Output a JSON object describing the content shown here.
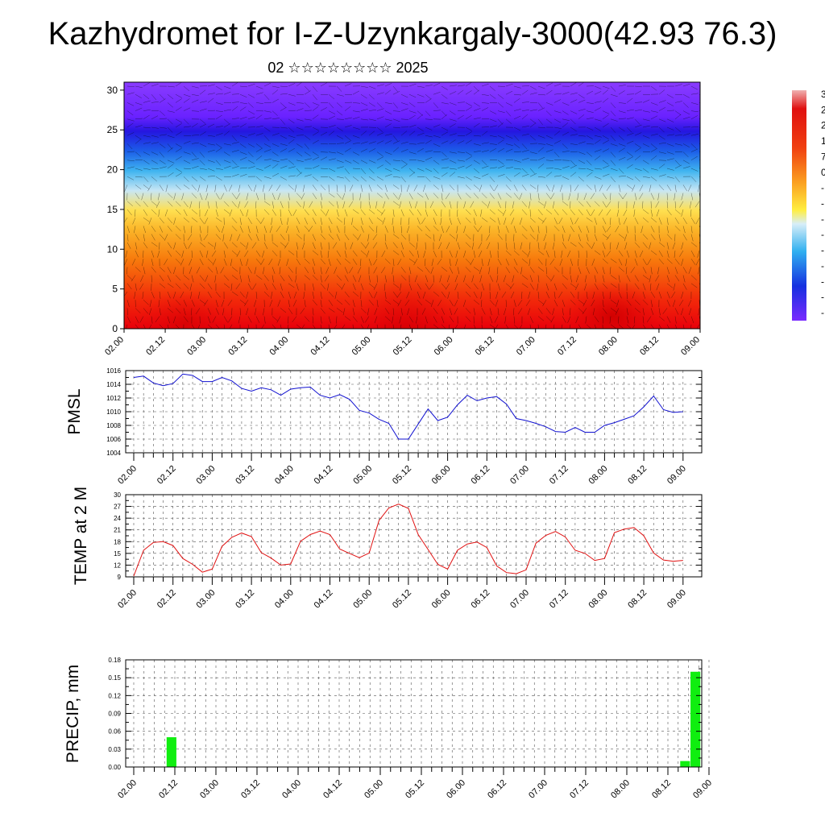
{
  "title": "Kazhydromet for I-Z-Uzynkargaly-3000(42.93 76.3)",
  "subtitle": "02 ☆☆☆☆☆☆☆☆ 2025",
  "time_labels": [
    "02.00",
    "02.12",
    "03.00",
    "03.12",
    "04.00",
    "04.12",
    "05.00",
    "05.12",
    "06.00",
    "06.12",
    "07.00",
    "07.12",
    "08.00",
    "08.12",
    "09.00"
  ],
  "chart_data": [
    {
      "type": "heatmap",
      "ylim": [
        0,
        31
      ],
      "yticks": [
        "0",
        "5",
        "10",
        "15",
        "20",
        "25",
        "30"
      ],
      "colorbar_ticks": [
        "3",
        "2",
        "2",
        "1",
        "7",
        "0",
        "-",
        "-",
        "-",
        "-",
        "-",
        "-",
        "-",
        "-",
        "-"
      ],
      "colors": {
        "warm": "#e8000b",
        "mid": "#ffe050",
        "cold": "#1f9ff0",
        "top": "#7f2fff"
      }
    },
    {
      "type": "line",
      "ylabel": "PMSL",
      "ylim": [
        1004,
        1016
      ],
      "yticks": [
        "1016",
        "1014",
        "1012",
        "1010",
        "1008",
        "1006",
        "1004"
      ],
      "series": [
        {
          "color": "#1010d0",
          "values": [
            1015.0,
            1015.2,
            1014.2,
            1013.8,
            1014.1,
            1015.5,
            1015.3,
            1014.4,
            1014.4,
            1015.0,
            1014.5,
            1013.4,
            1013.0,
            1013.5,
            1013.2,
            1012.4,
            1013.3,
            1013.5,
            1013.6,
            1012.4,
            1012.0,
            1012.5,
            1011.8,
            1010.2,
            1009.8,
            1008.9,
            1008.3,
            1006.0,
            1006.0,
            1008.2,
            1010.4,
            1008.7,
            1009.2,
            1011.0,
            1012.4,
            1011.6,
            1012.0,
            1012.2,
            1011.1,
            1009.0,
            1008.7,
            1008.3,
            1007.8,
            1007.1,
            1007.0,
            1007.7,
            1007.0,
            1007.0,
            1008.0,
            1008.4,
            1008.9,
            1009.4,
            1010.7,
            1012.3,
            1010.3,
            1009.9,
            1010.0
          ]
        }
      ]
    },
    {
      "type": "line",
      "ylabel": "TEMP at 2 M",
      "ylim": [
        9,
        30
      ],
      "yticks": [
        "30",
        "27",
        "24",
        "21",
        "18",
        "15",
        "12",
        "9"
      ],
      "series": [
        {
          "color": "#e01010",
          "values": [
            9.2,
            15.8,
            17.8,
            18.0,
            17.0,
            13.7,
            12.2,
            10.2,
            11.0,
            16.8,
            19.1,
            20.2,
            19.3,
            15.2,
            13.8,
            12.0,
            12.3,
            18.1,
            19.8,
            20.7,
            19.8,
            16.1,
            15.0,
            13.9,
            15.1,
            23.4,
            26.6,
            27.6,
            26.5,
            19.8,
            16.0,
            12.2,
            11.0,
            15.8,
            17.4,
            17.9,
            16.5,
            11.8,
            10.1,
            9.8,
            10.8,
            17.6,
            19.6,
            20.6,
            19.2,
            15.8,
            15.0,
            13.2,
            13.7,
            20.3,
            21.2,
            21.6,
            19.5,
            15.1,
            13.3,
            13.0,
            13.2
          ]
        }
      ]
    },
    {
      "type": "bar",
      "ylabel": "PRECIP, mm",
      "ylim": [
        0,
        0.18
      ],
      "yticks": [
        "0.18",
        "0.15",
        "0.12",
        "0.09",
        "0.06",
        "0.03",
        "0.00"
      ],
      "color": "#10ee10",
      "bars": [
        {
          "x": 3,
          "value": 0.05
        },
        {
          "x": 53,
          "value": 0.01
        },
        {
          "x": 54,
          "value": 0.16
        }
      ]
    }
  ]
}
